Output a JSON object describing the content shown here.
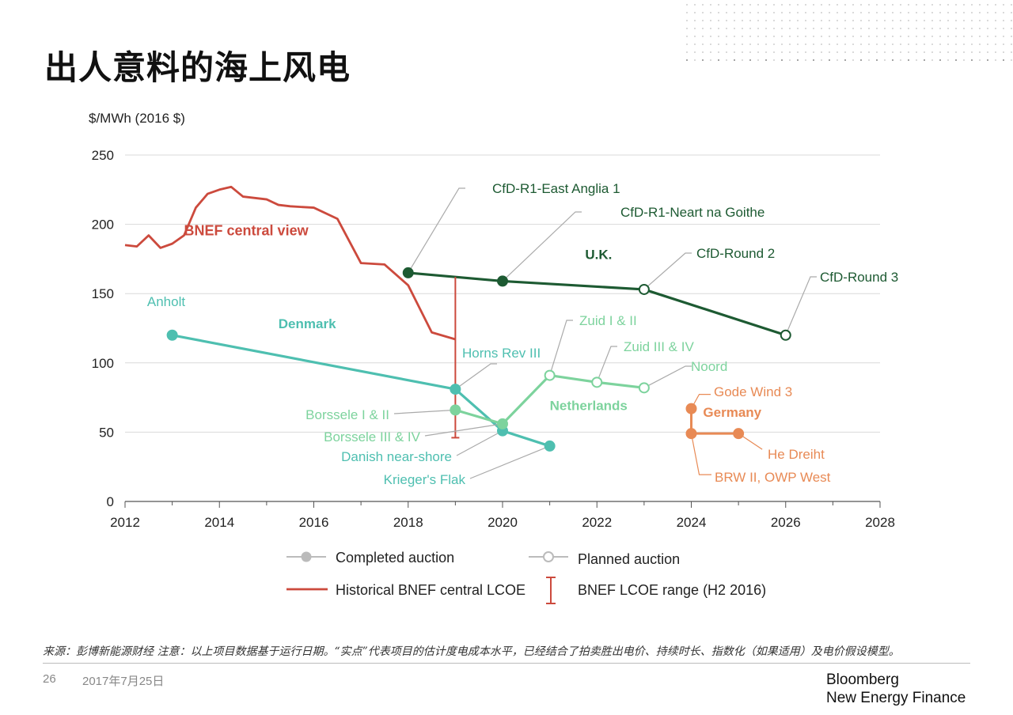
{
  "title": "出人意料的海上风电",
  "footnote": "来源：彭博新能源财经 注意：以上项目数据基于运行日期。“实点”代表项目的估计度电成本水平，已经结合了拍卖胜出电价、持续时长、指数化（如果适用）及电价假设模型。",
  "page_number": "26",
  "date": "2017年7月25日",
  "brand": {
    "line1": "Bloomberg",
    "line2": "New Energy Finance"
  },
  "colors": {
    "historical": "#cc4a3d",
    "uk": "#1d5a32",
    "denmark": "#4ebfb0",
    "netherlands": "#7dd39d",
    "germany": "#e88a55",
    "grid": "#d9d9d9",
    "leader": "#aaaaaa"
  },
  "chart_data": {
    "type": "line",
    "ylabel": "$/MWh (2016 $)",
    "xlim": [
      2012,
      2028
    ],
    "ylim": [
      0,
      250
    ],
    "x_ticks": [
      2012,
      2014,
      2016,
      2018,
      2020,
      2022,
      2024,
      2026,
      2028
    ],
    "y_ticks": [
      0,
      50,
      100,
      150,
      200,
      250
    ],
    "series": [
      {
        "id": "historical",
        "name": "BNEF central view",
        "style": "line",
        "points": [
          [
            2012,
            185
          ],
          [
            2012.25,
            184
          ],
          [
            2012.5,
            192
          ],
          [
            2012.75,
            183
          ],
          [
            2013,
            186
          ],
          [
            2013.25,
            192
          ],
          [
            2013.5,
            212
          ],
          [
            2013.75,
            222
          ],
          [
            2014,
            225
          ],
          [
            2014.25,
            227
          ],
          [
            2014.5,
            220
          ],
          [
            2015,
            218
          ],
          [
            2015.25,
            214
          ],
          [
            2015.5,
            213
          ],
          [
            2016,
            212
          ],
          [
            2016.5,
            204
          ],
          [
            2017,
            172
          ],
          [
            2017.5,
            171
          ],
          [
            2018,
            156
          ],
          [
            2018.5,
            122
          ],
          [
            2019,
            117
          ]
        ]
      },
      {
        "id": "uk",
        "name": "U.K.",
        "style": "markers",
        "points": [
          [
            2018,
            165,
            "filled"
          ],
          [
            2020,
            159,
            "filled"
          ],
          [
            2023,
            153,
            "open"
          ],
          [
            2026,
            120,
            "open"
          ]
        ]
      },
      {
        "id": "denmark",
        "name": "Denmark",
        "style": "markers",
        "points": [
          [
            2013,
            120,
            "filled"
          ],
          [
            2019,
            81,
            "filled"
          ],
          [
            2020,
            51,
            "filled"
          ],
          [
            2021,
            40,
            "filled"
          ]
        ]
      },
      {
        "id": "netherlands",
        "name": "Netherlands",
        "style": "markers",
        "points": [
          [
            2019,
            66,
            "filled"
          ],
          [
            2020,
            56,
            "filled"
          ],
          [
            2021,
            91,
            "open"
          ],
          [
            2022,
            86,
            "open"
          ],
          [
            2023,
            82,
            "open"
          ]
        ]
      },
      {
        "id": "germany",
        "name": "Germany",
        "style": "markers",
        "points": [
          [
            2024,
            67,
            "filled"
          ],
          [
            2024,
            49,
            "filled"
          ],
          [
            2025,
            49,
            "filled"
          ]
        ]
      }
    ],
    "lcoe_range": {
      "x": 2019,
      "low": 46,
      "high": 162
    },
    "annotations": [
      {
        "text": "CfD-R1-East Anglia 1",
        "series": "uk",
        "x": 2018,
        "y": 165
      },
      {
        "text": "CfD-R1-Neart na Goithe",
        "series": "uk",
        "x": 2020,
        "y": 159
      },
      {
        "text": "CfD-Round 2",
        "series": "uk",
        "x": 2023,
        "y": 153
      },
      {
        "text": "CfD-Round 3",
        "series": "uk",
        "x": 2026,
        "y": 120
      },
      {
        "text": "Anholt",
        "series": "denmark",
        "x": 2013,
        "y": 120
      },
      {
        "text": "Horns Rev III",
        "series": "denmark",
        "x": 2019,
        "y": 81
      },
      {
        "text": "Danish near-shore",
        "series": "denmark",
        "x": 2020,
        "y": 51
      },
      {
        "text": "Krieger's Flak",
        "series": "denmark",
        "x": 2021,
        "y": 40
      },
      {
        "text": "Borssele I & II",
        "series": "netherlands",
        "x": 2019,
        "y": 66
      },
      {
        "text": "Borssele III & IV",
        "series": "netherlands",
        "x": 2020,
        "y": 56
      },
      {
        "text": "Zuid I & II",
        "series": "netherlands",
        "x": 2021,
        "y": 91
      },
      {
        "text": "Zuid III & IV",
        "series": "netherlands",
        "x": 2022,
        "y": 86
      },
      {
        "text": "Noord",
        "series": "netherlands",
        "x": 2023,
        "y": 82
      },
      {
        "text": "Gode Wind 3",
        "series": "germany",
        "x": 2024,
        "y": 67
      },
      {
        "text": "He Dreiht",
        "series": "germany",
        "x": 2025,
        "y": 49
      },
      {
        "text": "BRW II, OWP West",
        "series": "germany",
        "x": 2024,
        "y": 49
      }
    ],
    "series_labels": [
      {
        "text": "BNEF central view",
        "series": "historical",
        "x": 2013.25,
        "y": 192
      },
      {
        "text": "U.K.",
        "series": "uk",
        "x": 2021.75,
        "y": 175
      },
      {
        "text": "Denmark",
        "series": "denmark",
        "x": 2015.25,
        "y": 125
      },
      {
        "text": "Netherlands",
        "series": "netherlands",
        "x": 2021,
        "y": 66
      },
      {
        "text": "Germany",
        "series": "germany",
        "x": 2024.25,
        "y": 61
      }
    ],
    "legend": [
      {
        "kind": "completed",
        "label": "Completed auction"
      },
      {
        "kind": "planned",
        "label": "Planned auction"
      },
      {
        "kind": "historical",
        "label": "Historical BNEF central  LCOE"
      },
      {
        "kind": "range",
        "label": "BNEF LCOE range (H2 2016)"
      }
    ]
  }
}
